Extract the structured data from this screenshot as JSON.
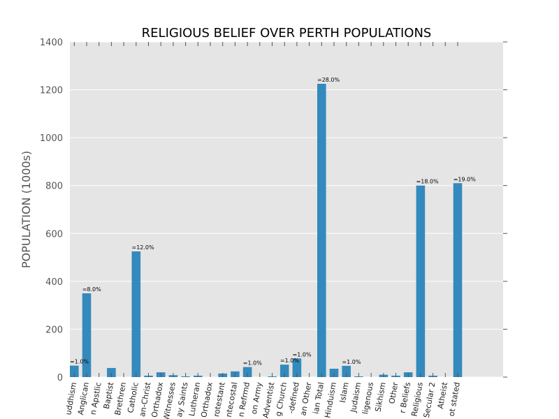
{
  "chart_data": {
    "type": "bar",
    "title": "RELIGIOUS BELIEF OVER PERTH POPULATIONS",
    "xlabel": "",
    "ylabel": "POPULATION (1000s)",
    "ylim": [
      0,
      1400
    ],
    "yticks": [
      0,
      200,
      400,
      600,
      800,
      1000,
      1200,
      1400
    ],
    "grid": true,
    "legend": "none",
    "categories": [
      "uddhism",
      "Anglican",
      "n Apstlic",
      "Baptist",
      "Brethren",
      "Catholic",
      "an-Christ",
      "Orthadox",
      "Witnesses",
      "ay Saints",
      "Lutheran",
      "Orthadox",
      "rotestant",
      "ntecostal",
      "n Refrmd",
      "on Army",
      "Adventist",
      "g Church",
      "-defined",
      "an Other",
      "ian Total",
      "Hinduism",
      "Islam",
      "Judaism",
      "ligenous",
      "Sikhism",
      "Other",
      "r Beliefs",
      "Religious",
      "Secular 2",
      "Atheist",
      "ot stated"
    ],
    "values": [
      48,
      350,
      0,
      38,
      0,
      525,
      6,
      20,
      8,
      3,
      6,
      0,
      15,
      24,
      42,
      0,
      3,
      52,
      78,
      0,
      1225,
      35,
      47,
      3,
      0,
      10,
      6,
      20,
      800,
      6,
      0,
      810
    ],
    "data_labels": [
      "=1.0%",
      "=8.0%",
      "",
      "",
      "",
      "=12.0%",
      "",
      "",
      "",
      "",
      "",
      "",
      "",
      "",
      "=1.0%",
      "",
      "",
      "=1.0%",
      "=1.0%",
      "",
      "=28.0%",
      "",
      "=1.0%",
      "",
      "",
      "",
      "",
      "",
      "=18.0%",
      "",
      "",
      "=19.0%"
    ],
    "colors": {
      "bar": "#348abd",
      "plot_background": "#e5e5e5",
      "grid": "#ffffff",
      "tick_text": "#555555"
    }
  }
}
